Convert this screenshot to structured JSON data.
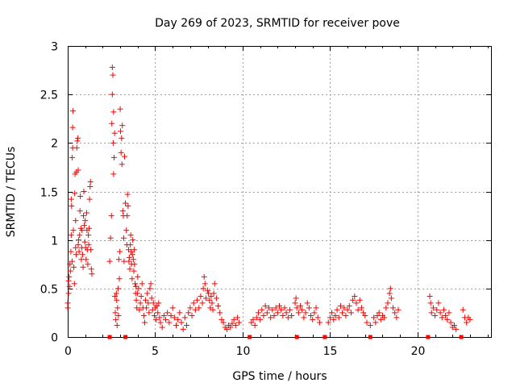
{
  "chart_data": {
    "type": "scatter",
    "title": "Day 269 of 2023, SRMTID for receiver pove",
    "xlabel": "GPS time / hours",
    "ylabel": "SRMTID / TECUs",
    "xlim": [
      0,
      24.2
    ],
    "ylim": [
      0,
      3
    ],
    "x_ticks": [
      0,
      5,
      10,
      15,
      20
    ],
    "x_tick_labels": [
      "0",
      "5",
      "10",
      "15",
      "20"
    ],
    "y_ticks": [
      0,
      0.5,
      1,
      1.5,
      2,
      2.5,
      3
    ],
    "y_tick_labels": [
      "0",
      "0.5",
      "1",
      "1.5",
      "2",
      "2.5",
      "3"
    ],
    "grid": true,
    "marker": "+",
    "color": "#ff0000",
    "series": [
      {
        "values": [
          [
            0.0,
            0.35
          ],
          [
            0.0,
            0.3
          ],
          [
            0.05,
            0.45
          ],
          [
            0.05,
            0.58
          ],
          [
            0.08,
            0.62
          ],
          [
            0.1,
            0.52
          ],
          [
            0.12,
            0.75
          ],
          [
            0.15,
            0.68
          ],
          [
            0.18,
            0.88
          ],
          [
            0.2,
            1.05
          ],
          [
            0.2,
            1.42
          ],
          [
            0.22,
            1.35
          ],
          [
            0.25,
            0.78
          ],
          [
            0.25,
            1.85
          ],
          [
            0.28,
            1.95
          ],
          [
            0.28,
            2.16
          ],
          [
            0.3,
            2.33
          ],
          [
            0.32,
            1.1
          ],
          [
            0.35,
            0.72
          ],
          [
            0.38,
            0.55
          ],
          [
            0.4,
            1.48
          ],
          [
            0.42,
            1.68
          ],
          [
            0.45,
            1.2
          ],
          [
            0.45,
            0.92
          ],
          [
            0.48,
            0.85
          ],
          [
            0.5,
            1.7
          ],
          [
            0.52,
            1.95
          ],
          [
            0.55,
            2.02
          ],
          [
            0.58,
            2.05
          ],
          [
            0.6,
            1.72
          ],
          [
            0.6,
            0.95
          ],
          [
            0.62,
            1.0
          ],
          [
            0.65,
            0.88
          ],
          [
            0.68,
            1.05
          ],
          [
            0.7,
            1.3
          ],
          [
            0.72,
            1.45
          ],
          [
            0.75,
            1.12
          ],
          [
            0.78,
            0.8
          ],
          [
            0.8,
            0.92
          ],
          [
            0.82,
            1.1
          ],
          [
            0.85,
            0.85
          ],
          [
            0.88,
            0.72
          ],
          [
            0.9,
            1.25
          ],
          [
            0.92,
            1.5
          ],
          [
            0.95,
            1.15
          ],
          [
            0.98,
            0.98
          ],
          [
            1.0,
            1.2
          ],
          [
            1.02,
            0.92
          ],
          [
            1.05,
            0.8
          ],
          [
            1.08,
            1.28
          ],
          [
            1.1,
            1.1
          ],
          [
            1.12,
            0.9
          ],
          [
            1.15,
            0.75
          ],
          [
            1.18,
            1.05
          ],
          [
            1.2,
            0.95
          ],
          [
            1.22,
            1.12
          ],
          [
            1.25,
            1.42
          ],
          [
            1.28,
            1.55
          ],
          [
            1.3,
            1.6
          ],
          [
            1.32,
            0.9
          ],
          [
            1.35,
            0.7
          ],
          [
            1.38,
            0.65
          ],
          [
            2.4,
            0.78
          ],
          [
            2.45,
            1.02
          ],
          [
            2.5,
            1.25
          ],
          [
            2.52,
            2.2
          ],
          [
            2.55,
            2.78
          ],
          [
            2.55,
            2.5
          ],
          [
            2.58,
            2.7
          ],
          [
            2.6,
            2.0
          ],
          [
            2.62,
            1.68
          ],
          [
            2.62,
            2.32
          ],
          [
            2.65,
            1.85
          ],
          [
            2.68,
            2.1
          ],
          [
            2.7,
            0.42
          ],
          [
            2.72,
            0.25
          ],
          [
            2.75,
            0.18
          ],
          [
            2.78,
            0.45
          ],
          [
            2.8,
            0.38
          ],
          [
            2.82,
            0.12
          ],
          [
            2.85,
            0.3
          ],
          [
            2.88,
            0.5
          ],
          [
            2.9,
            0.22
          ],
          [
            2.92,
            0.8
          ],
          [
            2.95,
            0.6
          ],
          [
            2.98,
            0.88
          ],
          [
            3.0,
            2.35
          ],
          [
            3.02,
            2.12
          ],
          [
            3.05,
            1.9
          ],
          [
            3.08,
            2.05
          ],
          [
            3.1,
            1.78
          ],
          [
            3.12,
            2.18
          ],
          [
            3.15,
            1.3
          ],
          [
            3.18,
            1.25
          ],
          [
            3.2,
            1.02
          ],
          [
            3.22,
            0.78
          ],
          [
            3.25,
            1.86
          ],
          [
            3.3,
            1.38
          ],
          [
            3.35,
            1.1
          ],
          [
            3.38,
            0.95
          ],
          [
            3.4,
            1.25
          ],
          [
            3.42,
            1.47
          ],
          [
            3.45,
            1.35
          ],
          [
            3.48,
            0.9
          ],
          [
            3.5,
            0.78
          ],
          [
            3.52,
            0.82
          ],
          [
            3.55,
            0.7
          ],
          [
            3.58,
            0.95
          ],
          [
            3.6,
            1.05
          ],
          [
            3.62,
            0.88
          ],
          [
            3.65,
            0.75
          ],
          [
            3.68,
            0.6
          ],
          [
            3.7,
            0.85
          ],
          [
            3.72,
            1.0
          ],
          [
            3.75,
            0.8
          ],
          [
            3.78,
            0.68
          ],
          [
            3.8,
            0.9
          ],
          [
            3.82,
            0.75
          ],
          [
            3.85,
            0.55
          ],
          [
            3.88,
            0.45
          ],
          [
            3.9,
            0.52
          ],
          [
            3.92,
            0.38
          ],
          [
            3.95,
            0.3
          ],
          [
            3.98,
            0.45
          ],
          [
            4.0,
            0.62
          ],
          [
            4.05,
            0.5
          ],
          [
            4.1,
            0.28
          ],
          [
            4.15,
            0.35
          ],
          [
            4.2,
            0.42
          ],
          [
            4.25,
            0.55
          ],
          [
            4.3,
            0.3
          ],
          [
            4.35,
            0.22
          ],
          [
            4.4,
            0.15
          ],
          [
            4.45,
            0.38
          ],
          [
            4.5,
            0.3
          ],
          [
            4.55,
            0.45
          ],
          [
            4.6,
            0.35
          ],
          [
            4.65,
            0.25
          ],
          [
            4.7,
            0.5
          ],
          [
            4.75,
            0.55
          ],
          [
            4.8,
            0.4
          ],
          [
            4.85,
            0.28
          ],
          [
            4.9,
            0.35
          ],
          [
            4.95,
            0.22
          ],
          [
            5.0,
            0.3
          ],
          [
            5.05,
            0.18
          ],
          [
            5.1,
            0.32
          ],
          [
            5.15,
            0.25
          ],
          [
            5.2,
            0.35
          ],
          [
            5.25,
            0.2
          ],
          [
            5.3,
            0.15
          ],
          [
            5.4,
            0.1
          ],
          [
            5.5,
            0.22
          ],
          [
            5.6,
            0.18
          ],
          [
            5.7,
            0.25
          ],
          [
            5.8,
            0.15
          ],
          [
            5.9,
            0.22
          ],
          [
            6.0,
            0.3
          ],
          [
            6.1,
            0.2
          ],
          [
            6.2,
            0.12
          ],
          [
            6.3,
            0.18
          ],
          [
            6.4,
            0.25
          ],
          [
            6.5,
            0.15
          ],
          [
            6.6,
            0.08
          ],
          [
            6.7,
            0.2
          ],
          [
            6.8,
            0.12
          ],
          [
            6.9,
            0.25
          ],
          [
            7.0,
            0.3
          ],
          [
            7.1,
            0.22
          ],
          [
            7.2,
            0.35
          ],
          [
            7.3,
            0.28
          ],
          [
            7.4,
            0.38
          ],
          [
            7.5,
            0.3
          ],
          [
            7.6,
            0.42
          ],
          [
            7.7,
            0.35
          ],
          [
            7.75,
            0.5
          ],
          [
            7.8,
            0.62
          ],
          [
            7.85,
            0.55
          ],
          [
            7.9,
            0.4
          ],
          [
            8.0,
            0.48
          ],
          [
            8.05,
            0.45
          ],
          [
            8.1,
            0.38
          ],
          [
            8.15,
            0.3
          ],
          [
            8.2,
            0.42
          ],
          [
            8.25,
            0.35
          ],
          [
            8.3,
            0.28
          ],
          [
            8.35,
            0.45
          ],
          [
            8.4,
            0.55
          ],
          [
            8.5,
            0.4
          ],
          [
            8.6,
            0.32
          ],
          [
            8.7,
            0.25
          ],
          [
            8.8,
            0.18
          ],
          [
            8.9,
            0.15
          ],
          [
            9.0,
            0.1
          ],
          [
            9.1,
            0.08
          ],
          [
            9.2,
            0.12
          ],
          [
            9.3,
            0.1
          ],
          [
            9.4,
            0.14
          ],
          [
            9.5,
            0.18
          ],
          [
            9.6,
            0.12
          ],
          [
            9.7,
            0.2
          ],
          [
            9.8,
            0.15
          ],
          [
            10.5,
            0.15
          ],
          [
            10.6,
            0.18
          ],
          [
            10.7,
            0.12
          ],
          [
            10.8,
            0.2
          ],
          [
            10.9,
            0.25
          ],
          [
            11.0,
            0.18
          ],
          [
            11.1,
            0.28
          ],
          [
            11.2,
            0.22
          ],
          [
            11.3,
            0.32
          ],
          [
            11.4,
            0.25
          ],
          [
            11.5,
            0.3
          ],
          [
            11.6,
            0.2
          ],
          [
            11.7,
            0.28
          ],
          [
            11.8,
            0.22
          ],
          [
            11.9,
            0.3
          ],
          [
            12.0,
            0.25
          ],
          [
            12.1,
            0.32
          ],
          [
            12.2,
            0.28
          ],
          [
            12.3,
            0.22
          ],
          [
            12.4,
            0.3
          ],
          [
            12.5,
            0.25
          ],
          [
            12.6,
            0.2
          ],
          [
            12.7,
            0.28
          ],
          [
            12.8,
            0.22
          ],
          [
            13.0,
            0.35
          ],
          [
            13.05,
            0.4
          ],
          [
            13.1,
            0.3
          ],
          [
            13.2,
            0.25
          ],
          [
            13.3,
            0.32
          ],
          [
            13.4,
            0.28
          ],
          [
            13.5,
            0.2
          ],
          [
            13.6,
            0.25
          ],
          [
            13.7,
            0.35
          ],
          [
            13.8,
            0.3
          ],
          [
            13.9,
            0.22
          ],
          [
            14.0,
            0.18
          ],
          [
            14.1,
            0.25
          ],
          [
            14.2,
            0.3
          ],
          [
            14.3,
            0.2
          ],
          [
            14.4,
            0.15
          ],
          [
            14.9,
            0.15
          ],
          [
            15.0,
            0.2
          ],
          [
            15.1,
            0.25
          ],
          [
            15.2,
            0.18
          ],
          [
            15.3,
            0.22
          ],
          [
            15.4,
            0.28
          ],
          [
            15.5,
            0.2
          ],
          [
            15.6,
            0.32
          ],
          [
            15.7,
            0.25
          ],
          [
            15.8,
            0.3
          ],
          [
            15.9,
            0.22
          ],
          [
            16.0,
            0.28
          ],
          [
            16.1,
            0.32
          ],
          [
            16.2,
            0.25
          ],
          [
            16.3,
            0.38
          ],
          [
            16.4,
            0.42
          ],
          [
            16.5,
            0.35
          ],
          [
            16.6,
            0.28
          ],
          [
            16.7,
            0.38
          ],
          [
            16.8,
            0.3
          ],
          [
            16.9,
            0.25
          ],
          [
            17.0,
            0.22
          ],
          [
            17.1,
            0.15
          ],
          [
            17.3,
            0.12
          ],
          [
            17.5,
            0.2
          ],
          [
            17.6,
            0.15
          ],
          [
            17.7,
            0.22
          ],
          [
            17.8,
            0.25
          ],
          [
            17.9,
            0.18
          ],
          [
            18.0,
            0.22
          ],
          [
            18.1,
            0.2
          ],
          [
            18.2,
            0.3
          ],
          [
            18.3,
            0.35
          ],
          [
            18.4,
            0.45
          ],
          [
            18.45,
            0.5
          ],
          [
            18.5,
            0.4
          ],
          [
            18.6,
            0.3
          ],
          [
            18.7,
            0.25
          ],
          [
            18.8,
            0.2
          ],
          [
            18.9,
            0.28
          ],
          [
            20.7,
            0.42
          ],
          [
            20.75,
            0.35
          ],
          [
            20.8,
            0.25
          ],
          [
            20.9,
            0.3
          ],
          [
            21.0,
            0.22
          ],
          [
            21.1,
            0.28
          ],
          [
            21.2,
            0.35
          ],
          [
            21.3,
            0.25
          ],
          [
            21.4,
            0.2
          ],
          [
            21.5,
            0.28
          ],
          [
            21.6,
            0.22
          ],
          [
            21.7,
            0.18
          ],
          [
            21.8,
            0.25
          ],
          [
            21.9,
            0.15
          ],
          [
            22.0,
            0.1
          ],
          [
            22.1,
            0.12
          ],
          [
            22.2,
            0.08
          ],
          [
            22.6,
            0.28
          ],
          [
            22.7,
            0.2
          ],
          [
            22.8,
            0.15
          ],
          [
            22.9,
            0.2
          ],
          [
            23.0,
            0.18
          ]
        ]
      },
      {
        "values": [
          [
            2.4,
            0.0
          ],
          [
            3.3,
            0.0
          ],
          [
            10.4,
            0.0
          ],
          [
            13.1,
            0.0
          ],
          [
            14.7,
            0.0
          ],
          [
            17.3,
            0.0
          ],
          [
            20.6,
            0.0
          ],
          [
            22.5,
            0.0
          ]
        ]
      }
    ]
  }
}
